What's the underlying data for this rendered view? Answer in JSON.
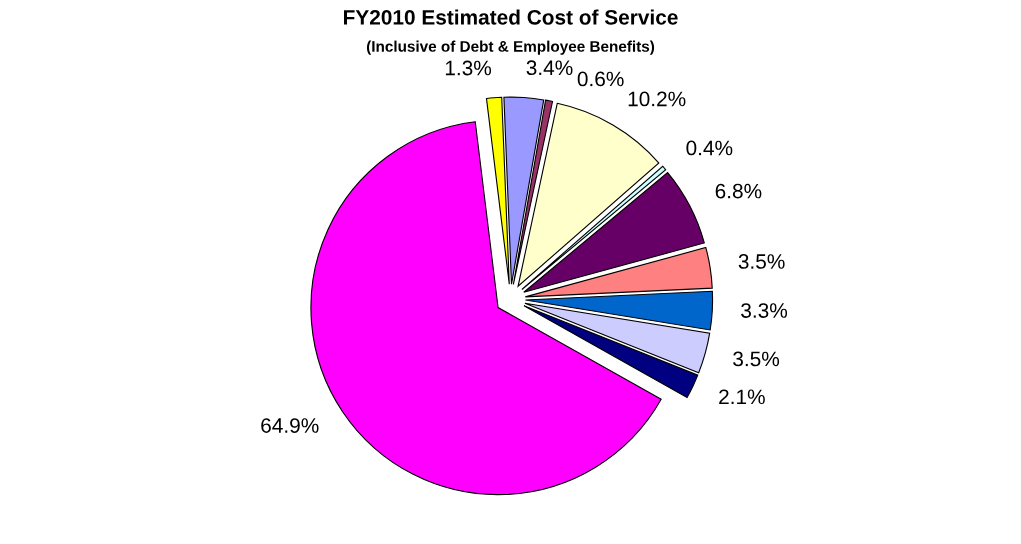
{
  "chart_data": {
    "type": "pie",
    "title": "FY2010 Estimated Cost of Service",
    "subtitle": "(Inclusive of Debt & Employee Benefits)",
    "categories": [
      null,
      null,
      null,
      null,
      null,
      null,
      null,
      null,
      null,
      null,
      null
    ],
    "values": [
      1.3,
      3.4,
      0.6,
      10.2,
      0.4,
      6.8,
      3.5,
      3.3,
      3.5,
      2.1,
      64.9
    ],
    "value_labels": [
      "1.3%",
      "3.4%",
      "0.6%",
      "10.2%",
      "0.4%",
      "6.8%",
      "3.5%",
      "3.3%",
      "3.5%",
      "2.1%",
      "64.9%"
    ],
    "colors": [
      "#ffff00",
      "#9999ff",
      "#993366",
      "#ffffcc",
      "#ccffff",
      "#660066",
      "#ff8080",
      "#0066cc",
      "#ccccff",
      "#000080",
      "#ff00ff"
    ]
  }
}
